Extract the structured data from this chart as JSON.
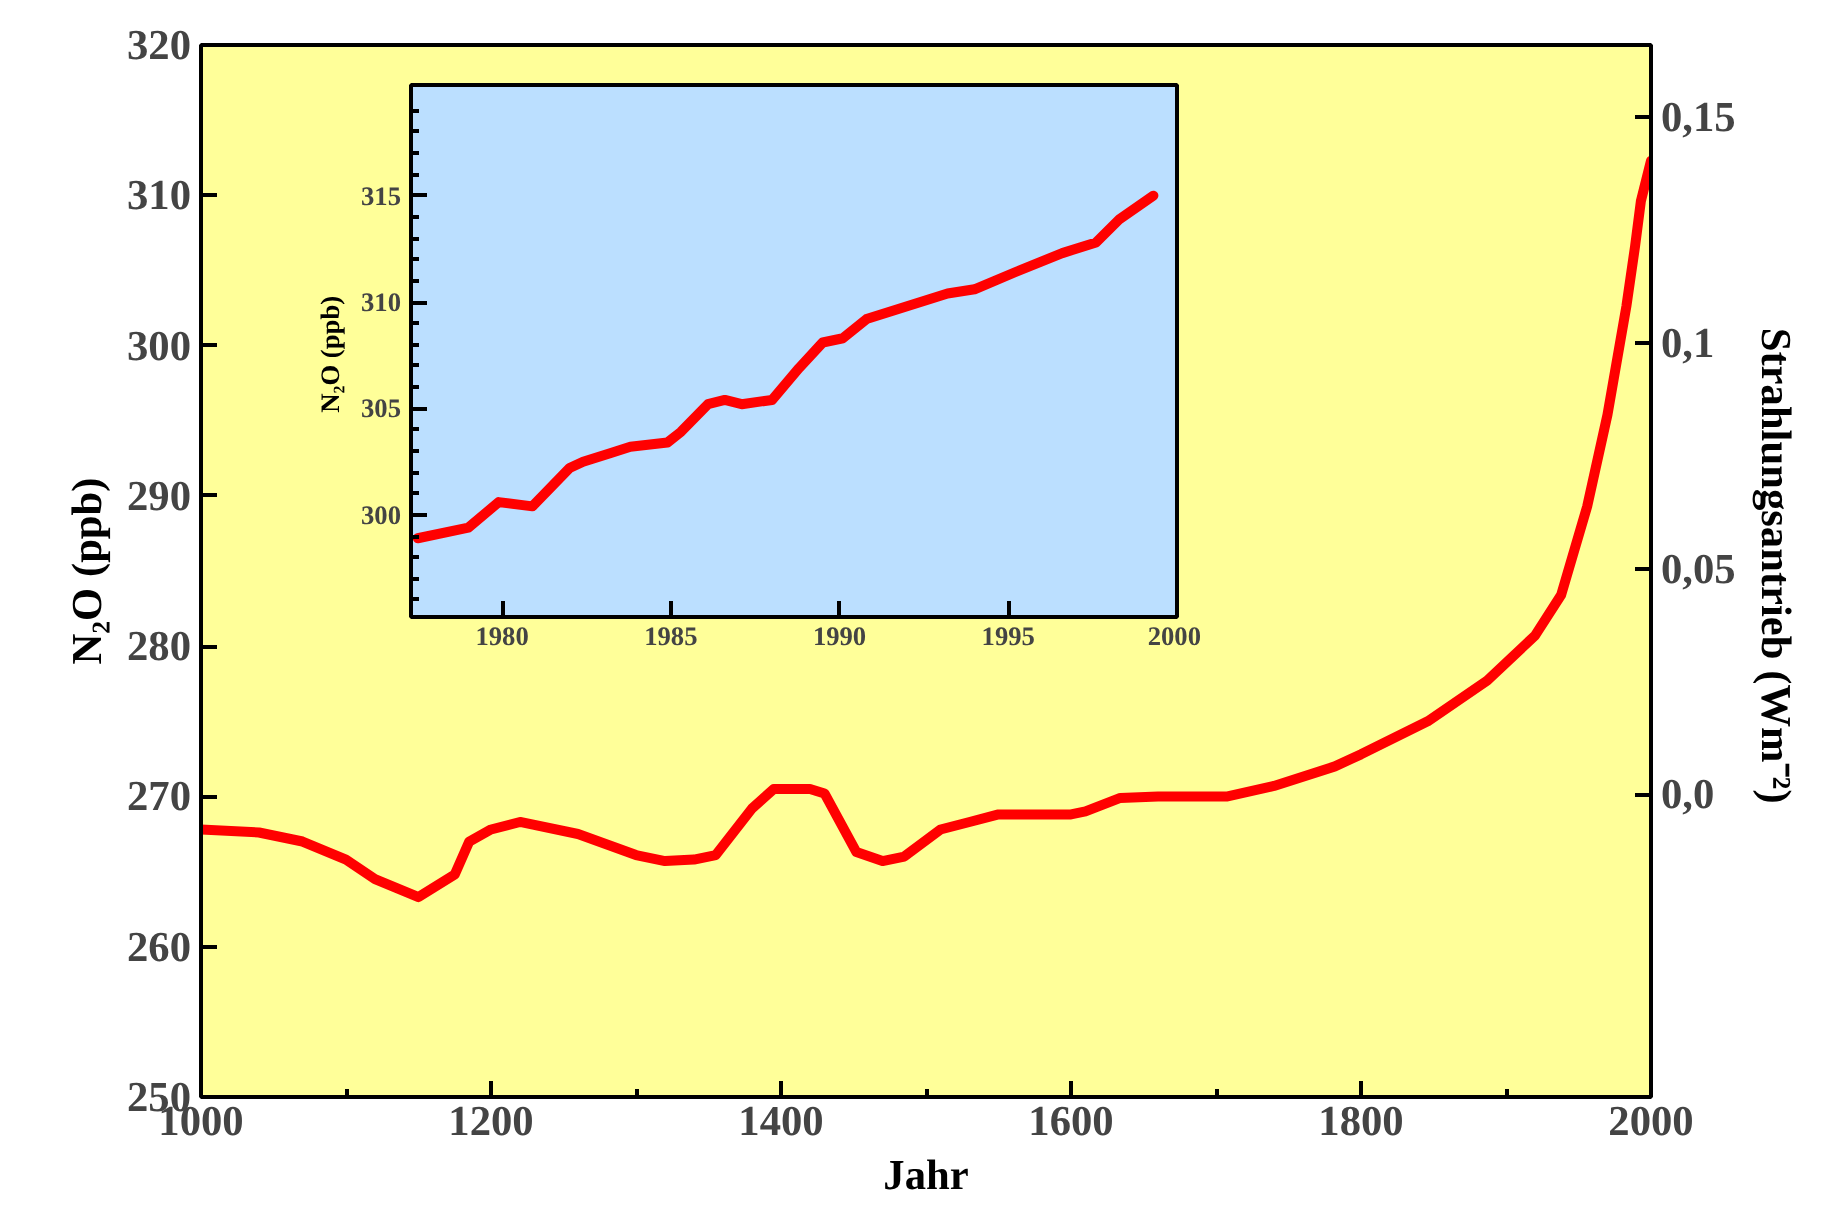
{
  "chart_data": [
    {
      "type": "line",
      "xlabel": "Jahr",
      "ylabel": "N₂O (ppb)",
      "y2label": "Strahlungsantrieb  (Wm⁻²)",
      "xlim": [
        1000,
        2000
      ],
      "ylim": [
        250,
        320
      ],
      "xticks": [
        1000,
        {
          "value": 1100,
          "label": null
        },
        1200,
        {
          "value": 1300,
          "label": null
        },
        1400,
        {
          "value": 1500,
          "label": null
        },
        1600,
        {
          "value": 1700,
          "label": null
        },
        1800,
        {
          "value": 1900,
          "label": null
        },
        2000
      ],
      "yticks": [
        250,
        260,
        270,
        280,
        290,
        300,
        310,
        320
      ],
      "y2lim": [
        -0.067,
        0.166
      ],
      "y2ticks": [
        {
          "value": 0.0,
          "label": "0,0"
        },
        {
          "value": 0.05,
          "label": "0,05"
        },
        {
          "value": 0.1,
          "label": "0,1"
        },
        {
          "value": 0.15,
          "label": "0,15"
        }
      ],
      "x": [
        1000,
        1040,
        1070,
        1100,
        1120,
        1150,
        1175,
        1185,
        1200,
        1220,
        1260,
        1300,
        1320,
        1340,
        1355,
        1380,
        1395,
        1420,
        1430,
        1452,
        1470,
        1485,
        1510,
        1530,
        1550,
        1600,
        1610,
        1634,
        1660,
        1708,
        1740,
        1782,
        1800,
        1846,
        1887,
        1920,
        1938,
        1956,
        1970,
        1983,
        1989,
        1993,
        2000
      ],
      "series": [
        {
          "color": "#ff0000",
          "values": [
            267.8,
            267.6,
            267.0,
            265.8,
            264.5,
            263.3,
            264.8,
            267.0,
            267.8,
            268.3,
            267.5,
            266.1,
            265.7,
            265.8,
            266.1,
            269.2,
            270.5,
            270.5,
            270.2,
            266.3,
            265.7,
            266.0,
            267.8,
            268.3,
            268.8,
            268.8,
            269.0,
            269.9,
            270.0,
            270.0,
            270.7,
            272.0,
            272.8,
            275.0,
            277.7,
            280.7,
            283.4,
            289.3,
            295.4,
            302.6,
            306.6,
            309.6,
            312.3
          ]
        }
      ]
    },
    {
      "type": "line",
      "ylabel": "N₂O  (ppb)",
      "xlim": [
        1977.3,
        2000.0
      ],
      "ylim": [
        295.2,
        320.2
      ],
      "xticks": [
        1980,
        1985,
        1990,
        1995,
        2000
      ],
      "yticks": [
        {
          "value": 296,
          "label": null
        },
        {
          "value": 297,
          "label": null
        },
        {
          "value": 298,
          "label": null
        },
        {
          "value": 299,
          "label": null
        },
        300,
        {
          "value": 301,
          "label": null
        },
        {
          "value": 302,
          "label": null
        },
        {
          "value": 303,
          "label": null
        },
        {
          "value": 304,
          "label": null
        },
        305,
        {
          "value": 306,
          "label": null
        },
        {
          "value": 307,
          "label": null
        },
        {
          "value": 308,
          "label": null
        },
        {
          "value": 309,
          "label": null
        },
        310,
        {
          "value": 311,
          "label": null
        },
        {
          "value": 312,
          "label": null
        },
        {
          "value": 313,
          "label": null
        },
        {
          "value": 314,
          "label": null
        },
        315,
        {
          "value": 316,
          "label": null
        },
        {
          "value": 317,
          "label": null
        },
        {
          "value": 318,
          "label": null
        },
        {
          "value": 319,
          "label": null
        }
      ],
      "x": [
        1977.5,
        1979.0,
        1979.9,
        1980.9,
        1982.0,
        1982.4,
        1983.2,
        1983.8,
        1984.9,
        1985.3,
        1986.1,
        1986.6,
        1987.1,
        1988.0,
        1988.8,
        1989.5,
        1990.1,
        1990.8,
        1992.0,
        1993.2,
        1994.0,
        1995.2,
        1996.6,
        1997.6,
        1998.3,
        1999.3
      ],
      "series": [
        {
          "color": "#ff0000",
          "values": [
            298.9,
            299.4,
            300.6,
            300.4,
            302.2,
            302.5,
            302.9,
            303.2,
            303.4,
            303.9,
            305.2,
            305.4,
            305.2,
            305.4,
            306.9,
            308.1,
            308.3,
            309.2,
            309.8,
            310.4,
            310.6,
            311.4,
            312.3,
            312.8,
            313.9,
            315.0
          ]
        }
      ]
    }
  ]
}
